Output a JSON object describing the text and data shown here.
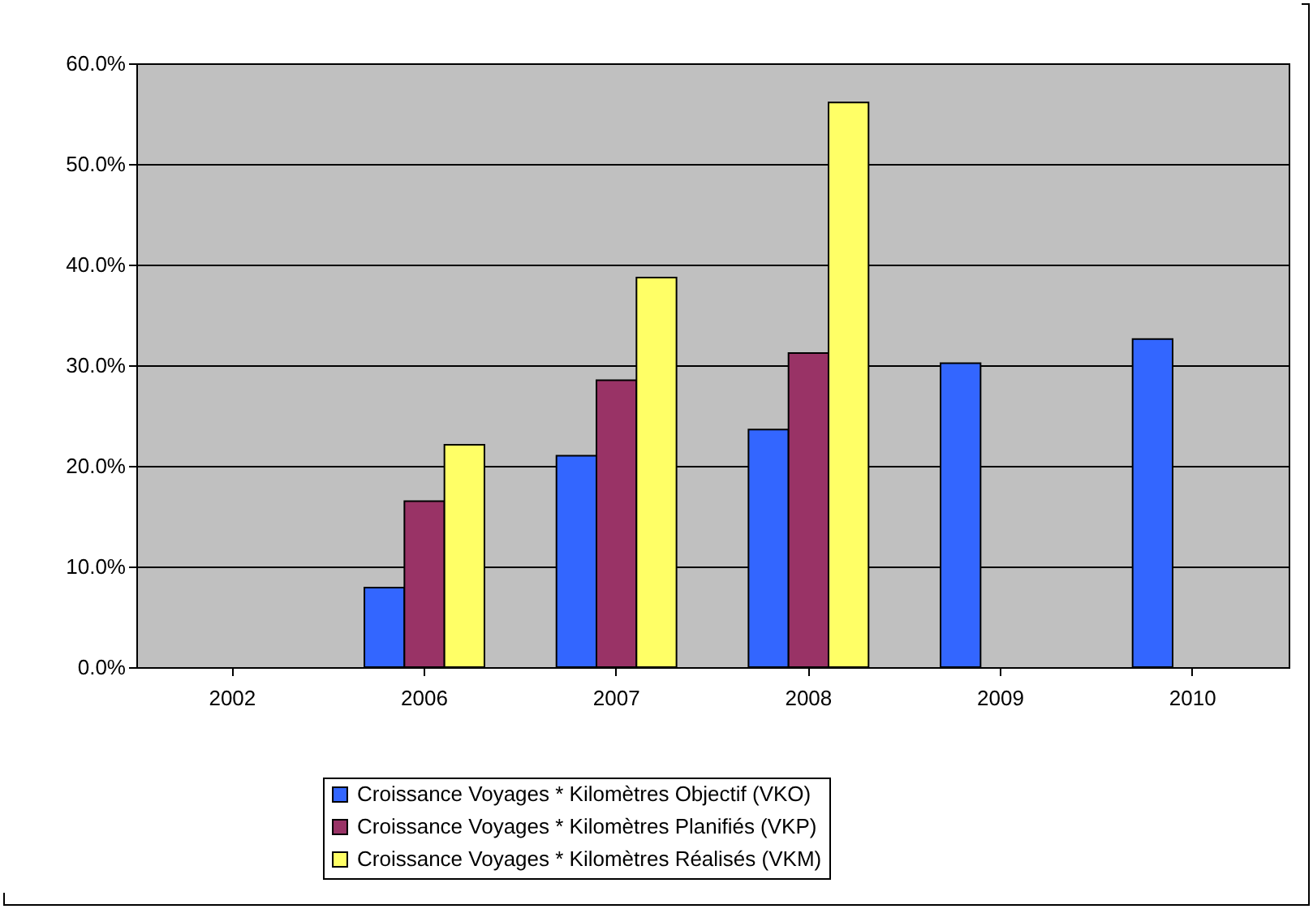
{
  "chart_data": {
    "type": "bar",
    "categories": [
      "2002",
      "2006",
      "2007",
      "2008",
      "2009",
      "2010"
    ],
    "series": [
      {
        "name": "Croissance Voyages * Kilomètres Objectif (VKO)",
        "color": "#3366ff",
        "values": [
          null,
          7.9,
          21.0,
          23.6,
          30.2,
          32.6
        ]
      },
      {
        "name": "Croissance Voyages * Kilomètres Planifiés (VKP)",
        "color": "#993366",
        "values": [
          null,
          16.5,
          28.5,
          31.2,
          null,
          null
        ]
      },
      {
        "name": "Croissance Voyages * Kilomètres Réalisés (VKM)",
        "color": "#ffff66",
        "values": [
          null,
          22.1,
          38.7,
          56.1,
          null,
          null
        ]
      }
    ],
    "ylim": [
      0,
      60
    ],
    "yticks": [
      {
        "value": 0,
        "label": "0.0%"
      },
      {
        "value": 10,
        "label": "10.0%"
      },
      {
        "value": 20,
        "label": "20.0%"
      },
      {
        "value": 30,
        "label": "30.0%"
      },
      {
        "value": 40,
        "label": "40.0%"
      },
      {
        "value": 50,
        "label": "50.0%"
      },
      {
        "value": 60,
        "label": "60.0%"
      }
    ],
    "grid": "y",
    "legend": "bottom"
  }
}
